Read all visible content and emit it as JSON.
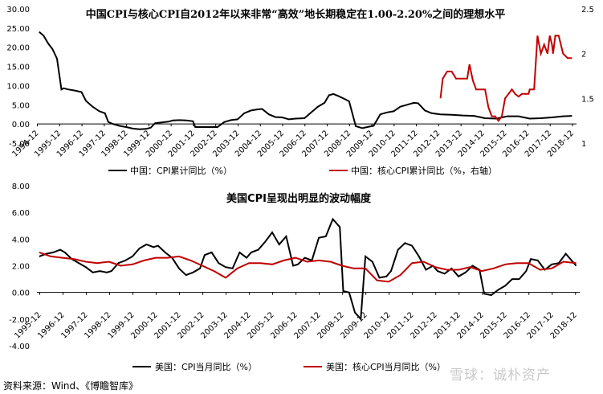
{
  "source_note": "资料来源：Wind、《博瞻智库》",
  "watermark": "雪球：诚朴资产",
  "chart_data": [
    {
      "type": "line",
      "title": "中国CPI与核心CPI自2012年以来非常“高效”地长期稳定在1.00-2.20%之间的理想水平",
      "x_tick_labels": [
        "1994-12",
        "1995-12",
        "1996-12",
        "1997-12",
        "1998-12",
        "1999-12",
        "2000-12",
        "2001-12",
        "2002-12",
        "2003-12",
        "2004-12",
        "2005-12",
        "2006-12",
        "2007-12",
        "2008-12",
        "2009-12",
        "2010-12",
        "2011-12",
        "2012-12",
        "2013-12",
        "2014-12",
        "2015-12",
        "2016-12",
        "2017-12",
        "2018-12"
      ],
      "x_range": [
        1994.9,
        2019.1
      ],
      "y_left": {
        "range": [
          -5,
          30
        ],
        "ticks": [
          "-5.00",
          "0.00",
          "5.00",
          "10.00",
          "15.00",
          "20.00",
          "25.00",
          "30.00"
        ]
      },
      "y_right": {
        "range": [
          1,
          2.5
        ],
        "ticks": [
          "1",
          "1.5",
          "2",
          "2.5"
        ]
      },
      "legend_position": "bottom",
      "series": [
        {
          "name": "中国：CPI累计同比（%）",
          "axis": "left",
          "color": "#000000",
          "x": [
            1995.0,
            1995.2,
            1995.4,
            1995.6,
            1995.8,
            1996.0,
            1996.1,
            1996.3,
            1996.6,
            1996.9,
            1997.1,
            1997.4,
            1997.7,
            1997.95,
            1998.1,
            1998.3,
            1998.6,
            1998.9,
            1999.2,
            1999.5,
            1999.8,
            2000.0,
            2000.2,
            2000.5,
            2000.8,
            2001.0,
            2001.3,
            2001.6,
            2001.9,
            2002.0,
            2002.5,
            2003.0,
            2003.3,
            2003.6,
            2003.9,
            2004.2,
            2004.5,
            2004.8,
            2005.0,
            2005.3,
            2005.6,
            2005.9,
            2006.2,
            2006.5,
            2006.9,
            2007.2,
            2007.5,
            2007.8,
            2008.0,
            2008.2,
            2008.45,
            2008.7,
            2008.9,
            2009.2,
            2009.5,
            2009.8,
            2010.0,
            2010.3,
            2010.6,
            2010.9,
            2011.2,
            2011.5,
            2011.8,
            2012.0,
            2012.3,
            2012.6,
            2013.0,
            2013.5,
            2014.0,
            2014.5,
            2015.0,
            2015.5,
            2016.0,
            2016.5,
            2017.0,
            2017.5,
            2018.0,
            2018.5,
            2018.9
          ],
          "y": [
            24.0,
            23.0,
            21.0,
            19.5,
            17.0,
            9.0,
            9.3,
            9.0,
            8.7,
            8.3,
            6.0,
            4.5,
            3.3,
            2.8,
            0.5,
            0.0,
            -0.5,
            -0.8,
            -1.2,
            -1.4,
            -1.3,
            -1.0,
            0.2,
            0.4,
            0.6,
            0.9,
            1.0,
            0.9,
            0.7,
            -0.8,
            -0.8,
            -0.8,
            0.5,
            1.0,
            1.2,
            2.8,
            3.5,
            3.8,
            3.9,
            2.5,
            1.8,
            1.7,
            1.2,
            1.4,
            1.5,
            3.0,
            4.5,
            5.5,
            7.5,
            7.8,
            7.2,
            6.5,
            5.9,
            -0.6,
            -1.1,
            -0.7,
            -0.5,
            2.5,
            3.0,
            3.3,
            4.5,
            5.0,
            5.5,
            5.4,
            3.5,
            2.8,
            2.5,
            2.4,
            2.2,
            2.1,
            1.5,
            1.4,
            2.0,
            2.0,
            1.4,
            1.5,
            1.7,
            2.0,
            2.1
          ]
        },
        {
          "name": "中国：核心CPI累计同比（%，右轴）",
          "axis": "right",
          "color": "#c00000",
          "x": [
            2013.0,
            2013.1,
            2013.3,
            2013.5,
            2013.7,
            2013.9,
            2014.0,
            2014.1,
            2014.2,
            2014.3,
            2014.45,
            2014.6,
            2014.8,
            2015.0,
            2015.15,
            2015.3,
            2015.45,
            2015.6,
            2015.75,
            2015.9,
            2016.05,
            2016.2,
            2016.35,
            2016.5,
            2016.65,
            2016.8,
            2016.95,
            2017.0,
            2017.1,
            2017.2,
            2017.35,
            2017.5,
            2017.65,
            2017.8,
            2017.9,
            2018.0,
            2018.05,
            2018.15,
            2018.3,
            2018.5,
            2018.7,
            2018.9
          ],
          "y": [
            1.5,
            1.72,
            1.8,
            1.8,
            1.72,
            1.72,
            1.72,
            1.72,
            1.72,
            1.88,
            1.7,
            1.6,
            1.6,
            1.6,
            1.4,
            1.3,
            1.3,
            1.25,
            1.3,
            1.5,
            1.55,
            1.6,
            1.55,
            1.52,
            1.55,
            1.55,
            1.55,
            1.6,
            1.6,
            1.6,
            2.2,
            2.0,
            2.1,
            2.0,
            2.2,
            2.1,
            2.0,
            2.2,
            2.2,
            2.0,
            1.95,
            1.95
          ]
        }
      ]
    },
    {
      "type": "line",
      "title": "美国CPI呈现出明显的波动幅度",
      "x_tick_labels": [
        "1995-12",
        "1996-12",
        "1997-12",
        "1998-12",
        "1999-12",
        "2000-12",
        "2001-12",
        "2002-12",
        "2003-12",
        "2004-12",
        "2005-12",
        "2006-12",
        "2007-12",
        "2008-12",
        "2009-12",
        "2010-12",
        "2011-12",
        "2012-12",
        "2013-12",
        "2014-12",
        "2015-12",
        "2016-12",
        "2017-12",
        "2018-12"
      ],
      "x_range": [
        1995.8,
        2019.1
      ],
      "y_left": {
        "range": [
          -4,
          8
        ],
        "ticks": [
          "-4.00",
          "-2.00",
          "0.00",
          "2.00",
          "4.00",
          "6.00",
          "8.00"
        ]
      },
      "legend_position": "bottom",
      "series": [
        {
          "name": "美国：CPI当月同比（%）",
          "color": "#000000",
          "x": [
            1995.9,
            1996.2,
            1996.5,
            1996.8,
            1997.0,
            1997.3,
            1997.6,
            1997.9,
            1998.2,
            1998.5,
            1998.8,
            1999.0,
            1999.3,
            1999.6,
            1999.9,
            2000.2,
            2000.5,
            2000.8,
            2001.0,
            2001.3,
            2001.6,
            2001.9,
            2002.2,
            2002.5,
            2002.8,
            2003.0,
            2003.3,
            2003.6,
            2003.9,
            2004.2,
            2004.5,
            2004.8,
            2005.0,
            2005.3,
            2005.6,
            2005.9,
            2006.2,
            2006.5,
            2006.8,
            2007.0,
            2007.3,
            2007.6,
            2007.9,
            2008.2,
            2008.5,
            2008.8,
            2008.95,
            2009.2,
            2009.45,
            2009.7,
            2009.9,
            2010.2,
            2010.5,
            2010.8,
            2011.0,
            2011.3,
            2011.6,
            2011.9,
            2012.2,
            2012.5,
            2012.8,
            2013.0,
            2013.3,
            2013.6,
            2013.9,
            2014.2,
            2014.5,
            2014.8,
            2015.0,
            2015.3,
            2015.6,
            2015.9,
            2016.2,
            2016.5,
            2016.8,
            2017.0,
            2017.3,
            2017.6,
            2017.9,
            2018.2,
            2018.5,
            2018.8,
            2018.95
          ],
          "y": [
            2.7,
            2.9,
            3.0,
            3.2,
            3.0,
            2.5,
            2.2,
            1.9,
            1.5,
            1.6,
            1.5,
            1.6,
            2.2,
            2.4,
            2.7,
            3.3,
            3.6,
            3.4,
            3.5,
            3.0,
            2.6,
            1.8,
            1.3,
            1.5,
            1.8,
            2.8,
            3.0,
            2.2,
            1.9,
            1.8,
            3.0,
            2.6,
            3.0,
            3.2,
            3.8,
            4.5,
            3.6,
            4.2,
            2.0,
            2.1,
            2.6,
            2.4,
            4.1,
            4.2,
            5.5,
            4.9,
            0.1,
            0.0,
            -1.5,
            -2.0,
            2.7,
            2.3,
            1.1,
            1.2,
            1.6,
            3.2,
            3.7,
            3.5,
            2.7,
            1.7,
            2.0,
            1.6,
            1.4,
            1.8,
            1.2,
            1.5,
            2.0,
            1.7,
            -0.1,
            -0.2,
            0.2,
            0.5,
            1.0,
            1.0,
            1.6,
            2.5,
            2.4,
            1.7,
            2.1,
            2.2,
            2.9,
            2.3,
            2.0
          ]
        },
        {
          "name": "美国：核心CPI当月同比（%）",
          "color": "#c00000",
          "x": [
            1995.9,
            1996.4,
            1996.9,
            1997.4,
            1997.9,
            1998.4,
            1998.9,
            1999.4,
            1999.9,
            2000.4,
            2000.9,
            2001.4,
            2001.9,
            2002.4,
            2002.9,
            2003.4,
            2003.9,
            2004.4,
            2004.9,
            2005.4,
            2005.9,
            2006.4,
            2006.9,
            2007.4,
            2007.9,
            2008.4,
            2008.9,
            2009.4,
            2009.9,
            2010.4,
            2010.9,
            2011.4,
            2011.9,
            2012.4,
            2012.9,
            2013.4,
            2013.9,
            2014.4,
            2014.9,
            2015.4,
            2015.9,
            2016.4,
            2016.9,
            2017.4,
            2017.9,
            2018.4,
            2018.95
          ],
          "y": [
            3.0,
            2.7,
            2.6,
            2.5,
            2.3,
            2.2,
            2.3,
            2.0,
            2.1,
            2.4,
            2.6,
            2.6,
            2.7,
            2.4,
            2.0,
            1.6,
            1.1,
            1.8,
            2.2,
            2.2,
            2.1,
            2.4,
            2.6,
            2.3,
            2.4,
            2.3,
            2.0,
            1.8,
            1.8,
            0.9,
            0.8,
            1.3,
            2.2,
            2.3,
            1.9,
            1.7,
            1.7,
            1.9,
            1.6,
            1.8,
            2.1,
            2.2,
            2.2,
            1.7,
            1.8,
            2.3,
            2.2
          ]
        }
      ]
    }
  ]
}
